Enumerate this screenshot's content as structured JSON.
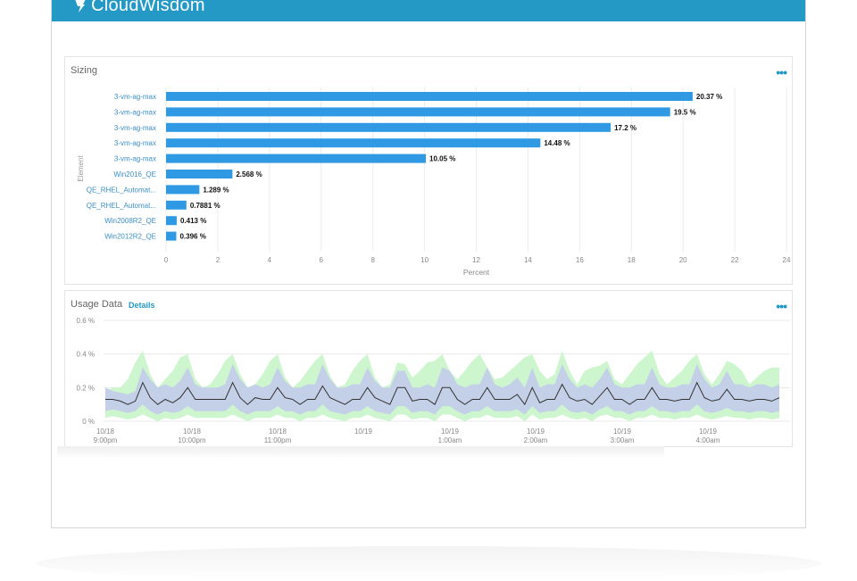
{
  "app": {
    "logo_text": "CloudWisdom"
  },
  "sizing": {
    "title": "Sizing",
    "more_label": "•••"
  },
  "usage": {
    "title": "Usage Data",
    "details_label": "Details",
    "more_label": "•••"
  },
  "chart_data": [
    {
      "type": "bar",
      "orientation": "horizontal",
      "title": "Sizing",
      "xlabel": "Percent",
      "ylabel": "Element",
      "xlim": [
        0,
        24
      ],
      "x_ticks": [
        "0",
        "2",
        "4",
        "6",
        "8",
        "10",
        "12",
        "14",
        "16",
        "18",
        "20",
        "22",
        "24"
      ],
      "categories": [
        "3-vm-ag-max",
        "3-vm-ag-max",
        "3-vm-ag-max",
        "3-vm-ag-max",
        "3-vm-ag-max",
        "Win2016_QE",
        "QE_RHEL_Automat...",
        "QE_RHEL_Automat...",
        "Win2008R2_QE",
        "Win2012R2_QE"
      ],
      "values": [
        20.37,
        19.5,
        17.2,
        14.48,
        10.05,
        2.568,
        1.289,
        0.7881,
        0.413,
        0.396
      ],
      "data_labels": [
        "20.37 %",
        "19.5 %",
        "17.2 %",
        "14.48 %",
        "10.05 %",
        "2.568 %",
        "1.289 %",
        "0.7881 %",
        "0.413 %",
        "0.396 %"
      ],
      "bar_color": "#2f9ae3",
      "grid": true
    },
    {
      "type": "area",
      "title": "Usage Data",
      "ylim": [
        0,
        0.6
      ],
      "y_ticks": [
        "0 %",
        "0.2 %",
        "0.4 %",
        "0.6 %"
      ],
      "x_ticks": [
        [
          "10/18",
          "9:00pm"
        ],
        [
          "10/18",
          "10:00pm"
        ],
        [
          "10/18",
          "11:00pm"
        ],
        [
          "10/19",
          ""
        ],
        [
          "10/19",
          "1:00am"
        ],
        [
          "10/19",
          "2:00am"
        ],
        [
          "10/19",
          "3:00am"
        ],
        [
          "10/19",
          "4:00am"
        ]
      ],
      "colors": {
        "outer_band": "#c9f5c9",
        "inner_band": "#c3cde9",
        "line": "#333333"
      },
      "series": [
        {
          "values": [
            0.13,
            0.13,
            0.12,
            0.1,
            0.12,
            0.23,
            0.14,
            0.1,
            0.13,
            0.11,
            0.14,
            0.2,
            0.13,
            0.13,
            0.13,
            0.13,
            0.13,
            0.23,
            0.14,
            0.1,
            0.14,
            0.13,
            0.13,
            0.2,
            0.14,
            0.13,
            0.1,
            0.13,
            0.13,
            0.21,
            0.14,
            0.12,
            0.1,
            0.13,
            0.13,
            0.2,
            0.14,
            0.12,
            0.1,
            0.2,
            0.2,
            0.12,
            0.13,
            0.13,
            0.1,
            0.2,
            0.2,
            0.13,
            0.1,
            0.13,
            0.13,
            0.2,
            0.13,
            0.13,
            0.13,
            0.16,
            0.1,
            0.2,
            0.11,
            0.13,
            0.13,
            0.22,
            0.14,
            0.12,
            0.13,
            0.1,
            0.15,
            0.2,
            0.13,
            0.13,
            0.1,
            0.13,
            0.13,
            0.2,
            0.13,
            0.13,
            0.12,
            0.13,
            0.13,
            0.23,
            0.14,
            0.12,
            0.13,
            0.19,
            0.13,
            0.13,
            0.12,
            0.13,
            0.13,
            0.12,
            0.14
          ]
        },
        {
          "values": [
            0.2,
            0.18,
            0.17,
            0.16,
            0.18,
            0.32,
            0.25,
            0.2,
            0.22,
            0.2,
            0.24,
            0.32,
            0.22,
            0.2,
            0.2,
            0.2,
            0.22,
            0.34,
            0.25,
            0.2,
            0.22,
            0.2,
            0.22,
            0.32,
            0.24,
            0.2,
            0.2,
            0.22,
            0.22,
            0.34,
            0.25,
            0.2,
            0.2,
            0.22,
            0.22,
            0.32,
            0.24,
            0.2,
            0.2,
            0.3,
            0.3,
            0.2,
            0.2,
            0.22,
            0.2,
            0.32,
            0.3,
            0.22,
            0.2,
            0.22,
            0.22,
            0.32,
            0.22,
            0.2,
            0.22,
            0.26,
            0.2,
            0.32,
            0.2,
            0.22,
            0.22,
            0.34,
            0.25,
            0.2,
            0.22,
            0.2,
            0.25,
            0.32,
            0.22,
            0.2,
            0.2,
            0.22,
            0.22,
            0.32,
            0.22,
            0.2,
            0.2,
            0.22,
            0.22,
            0.34,
            0.25,
            0.2,
            0.22,
            0.3,
            0.22,
            0.22,
            0.2,
            0.22,
            0.22,
            0.2,
            0.22
          ]
        },
        {
          "values": [
            0.06,
            0.07,
            0.06,
            0.05,
            0.06,
            0.1,
            0.06,
            0.04,
            0.06,
            0.05,
            0.06,
            0.09,
            0.06,
            0.06,
            0.06,
            0.06,
            0.06,
            0.1,
            0.06,
            0.04,
            0.06,
            0.06,
            0.06,
            0.09,
            0.06,
            0.06,
            0.04,
            0.06,
            0.06,
            0.1,
            0.06,
            0.05,
            0.04,
            0.06,
            0.06,
            0.09,
            0.06,
            0.05,
            0.04,
            0.09,
            0.09,
            0.05,
            0.06,
            0.06,
            0.04,
            0.09,
            0.09,
            0.06,
            0.04,
            0.06,
            0.06,
            0.09,
            0.06,
            0.06,
            0.06,
            0.07,
            0.04,
            0.09,
            0.05,
            0.06,
            0.06,
            0.1,
            0.06,
            0.05,
            0.06,
            0.04,
            0.07,
            0.09,
            0.06,
            0.06,
            0.04,
            0.06,
            0.06,
            0.09,
            0.06,
            0.06,
            0.05,
            0.06,
            0.06,
            0.1,
            0.06,
            0.05,
            0.06,
            0.08,
            0.06,
            0.06,
            0.05,
            0.06,
            0.06,
            0.05,
            0.06
          ]
        },
        {
          "values": [
            0.18,
            0.2,
            0.2,
            0.25,
            0.35,
            0.42,
            0.28,
            0.2,
            0.25,
            0.3,
            0.38,
            0.4,
            0.25,
            0.2,
            0.22,
            0.28,
            0.36,
            0.4,
            0.28,
            0.2,
            0.22,
            0.28,
            0.36,
            0.4,
            0.26,
            0.2,
            0.24,
            0.3,
            0.36,
            0.4,
            0.27,
            0.2,
            0.22,
            0.3,
            0.36,
            0.4,
            0.26,
            0.2,
            0.22,
            0.35,
            0.34,
            0.26,
            0.3,
            0.35,
            0.36,
            0.4,
            0.3,
            0.25,
            0.3,
            0.36,
            0.4,
            0.32,
            0.25,
            0.26,
            0.3,
            0.34,
            0.38,
            0.4,
            0.3,
            0.25,
            0.28,
            0.42,
            0.3,
            0.22,
            0.3,
            0.32,
            0.33,
            0.36,
            0.25,
            0.22,
            0.28,
            0.34,
            0.38,
            0.42,
            0.28,
            0.22,
            0.26,
            0.3,
            0.36,
            0.4,
            0.28,
            0.22,
            0.28,
            0.36,
            0.34,
            0.3,
            0.22,
            0.26,
            0.3,
            0.32,
            0.32
          ]
        },
        {
          "values": [
            0.02,
            0.03,
            0.02,
            0.01,
            0.02,
            0.04,
            0.02,
            0.0,
            0.02,
            0.01,
            0.02,
            0.04,
            0.02,
            0.02,
            0.02,
            0.02,
            0.02,
            0.04,
            0.02,
            0.0,
            0.02,
            0.02,
            0.02,
            0.04,
            0.02,
            0.02,
            0.0,
            0.02,
            0.02,
            0.04,
            0.02,
            0.01,
            0.0,
            0.02,
            0.02,
            0.04,
            0.02,
            0.01,
            0.0,
            0.04,
            0.04,
            0.01,
            0.02,
            0.02,
            0.0,
            0.04,
            0.04,
            0.02,
            0.0,
            0.02,
            0.02,
            0.04,
            0.02,
            0.02,
            0.02,
            0.03,
            0.0,
            0.04,
            0.01,
            0.02,
            0.02,
            0.04,
            0.02,
            0.01,
            0.02,
            0.0,
            0.03,
            0.04,
            0.02,
            0.02,
            0.0,
            0.02,
            0.02,
            0.04,
            0.02,
            0.02,
            0.01,
            0.02,
            0.02,
            0.04,
            0.02,
            0.01,
            0.02,
            0.03,
            0.02,
            0.02,
            0.01,
            0.02,
            0.02,
            0.01,
            0.02
          ]
        }
      ]
    }
  ]
}
